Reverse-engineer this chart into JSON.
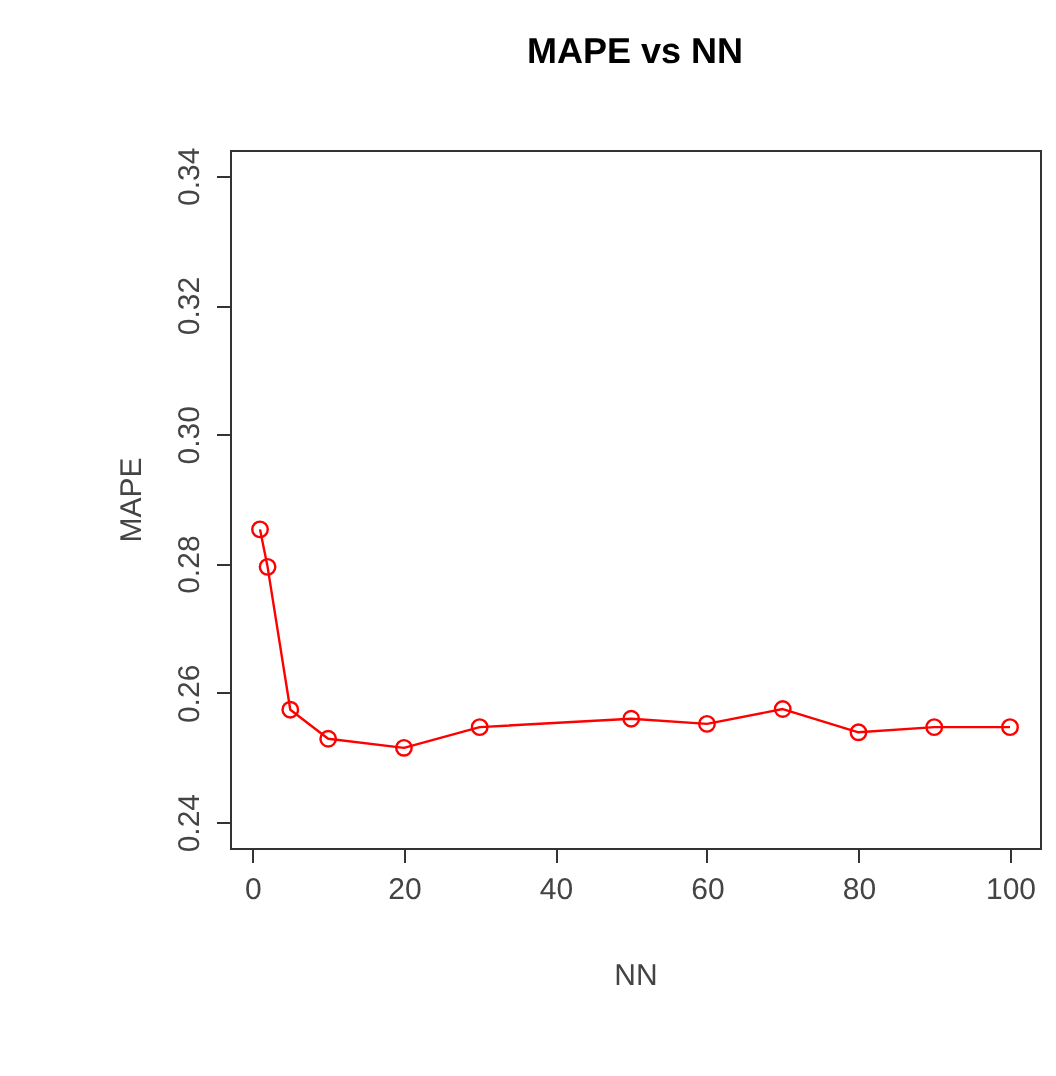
{
  "chart_data": {
    "type": "line",
    "title": "MAPE vs NN",
    "xlabel": "NN",
    "ylabel": "MAPE",
    "x": [
      1,
      2,
      5,
      10,
      20,
      30,
      50,
      60,
      70,
      80,
      90,
      100
    ],
    "series": [
      {
        "color": "#ff0000",
        "values": [
          0.2853,
          0.2795,
          0.2574,
          0.2529,
          0.2515,
          0.2547,
          0.256,
          0.2552,
          0.2575,
          0.2539,
          0.2547,
          0.2547
        ]
      }
    ],
    "xlim": [
      -2.96,
      103.96
    ],
    "xticks": [
      0,
      20,
      40,
      60,
      80,
      100
    ],
    "ylim": [
      0.236,
      0.344
    ],
    "yticks": [
      0.24,
      0.26,
      0.28,
      {
        "value": 0.3,
        "label": "0.30"
      },
      0.32,
      0.34
    ],
    "grid": false,
    "marker": "circle",
    "line_style": "solid"
  }
}
